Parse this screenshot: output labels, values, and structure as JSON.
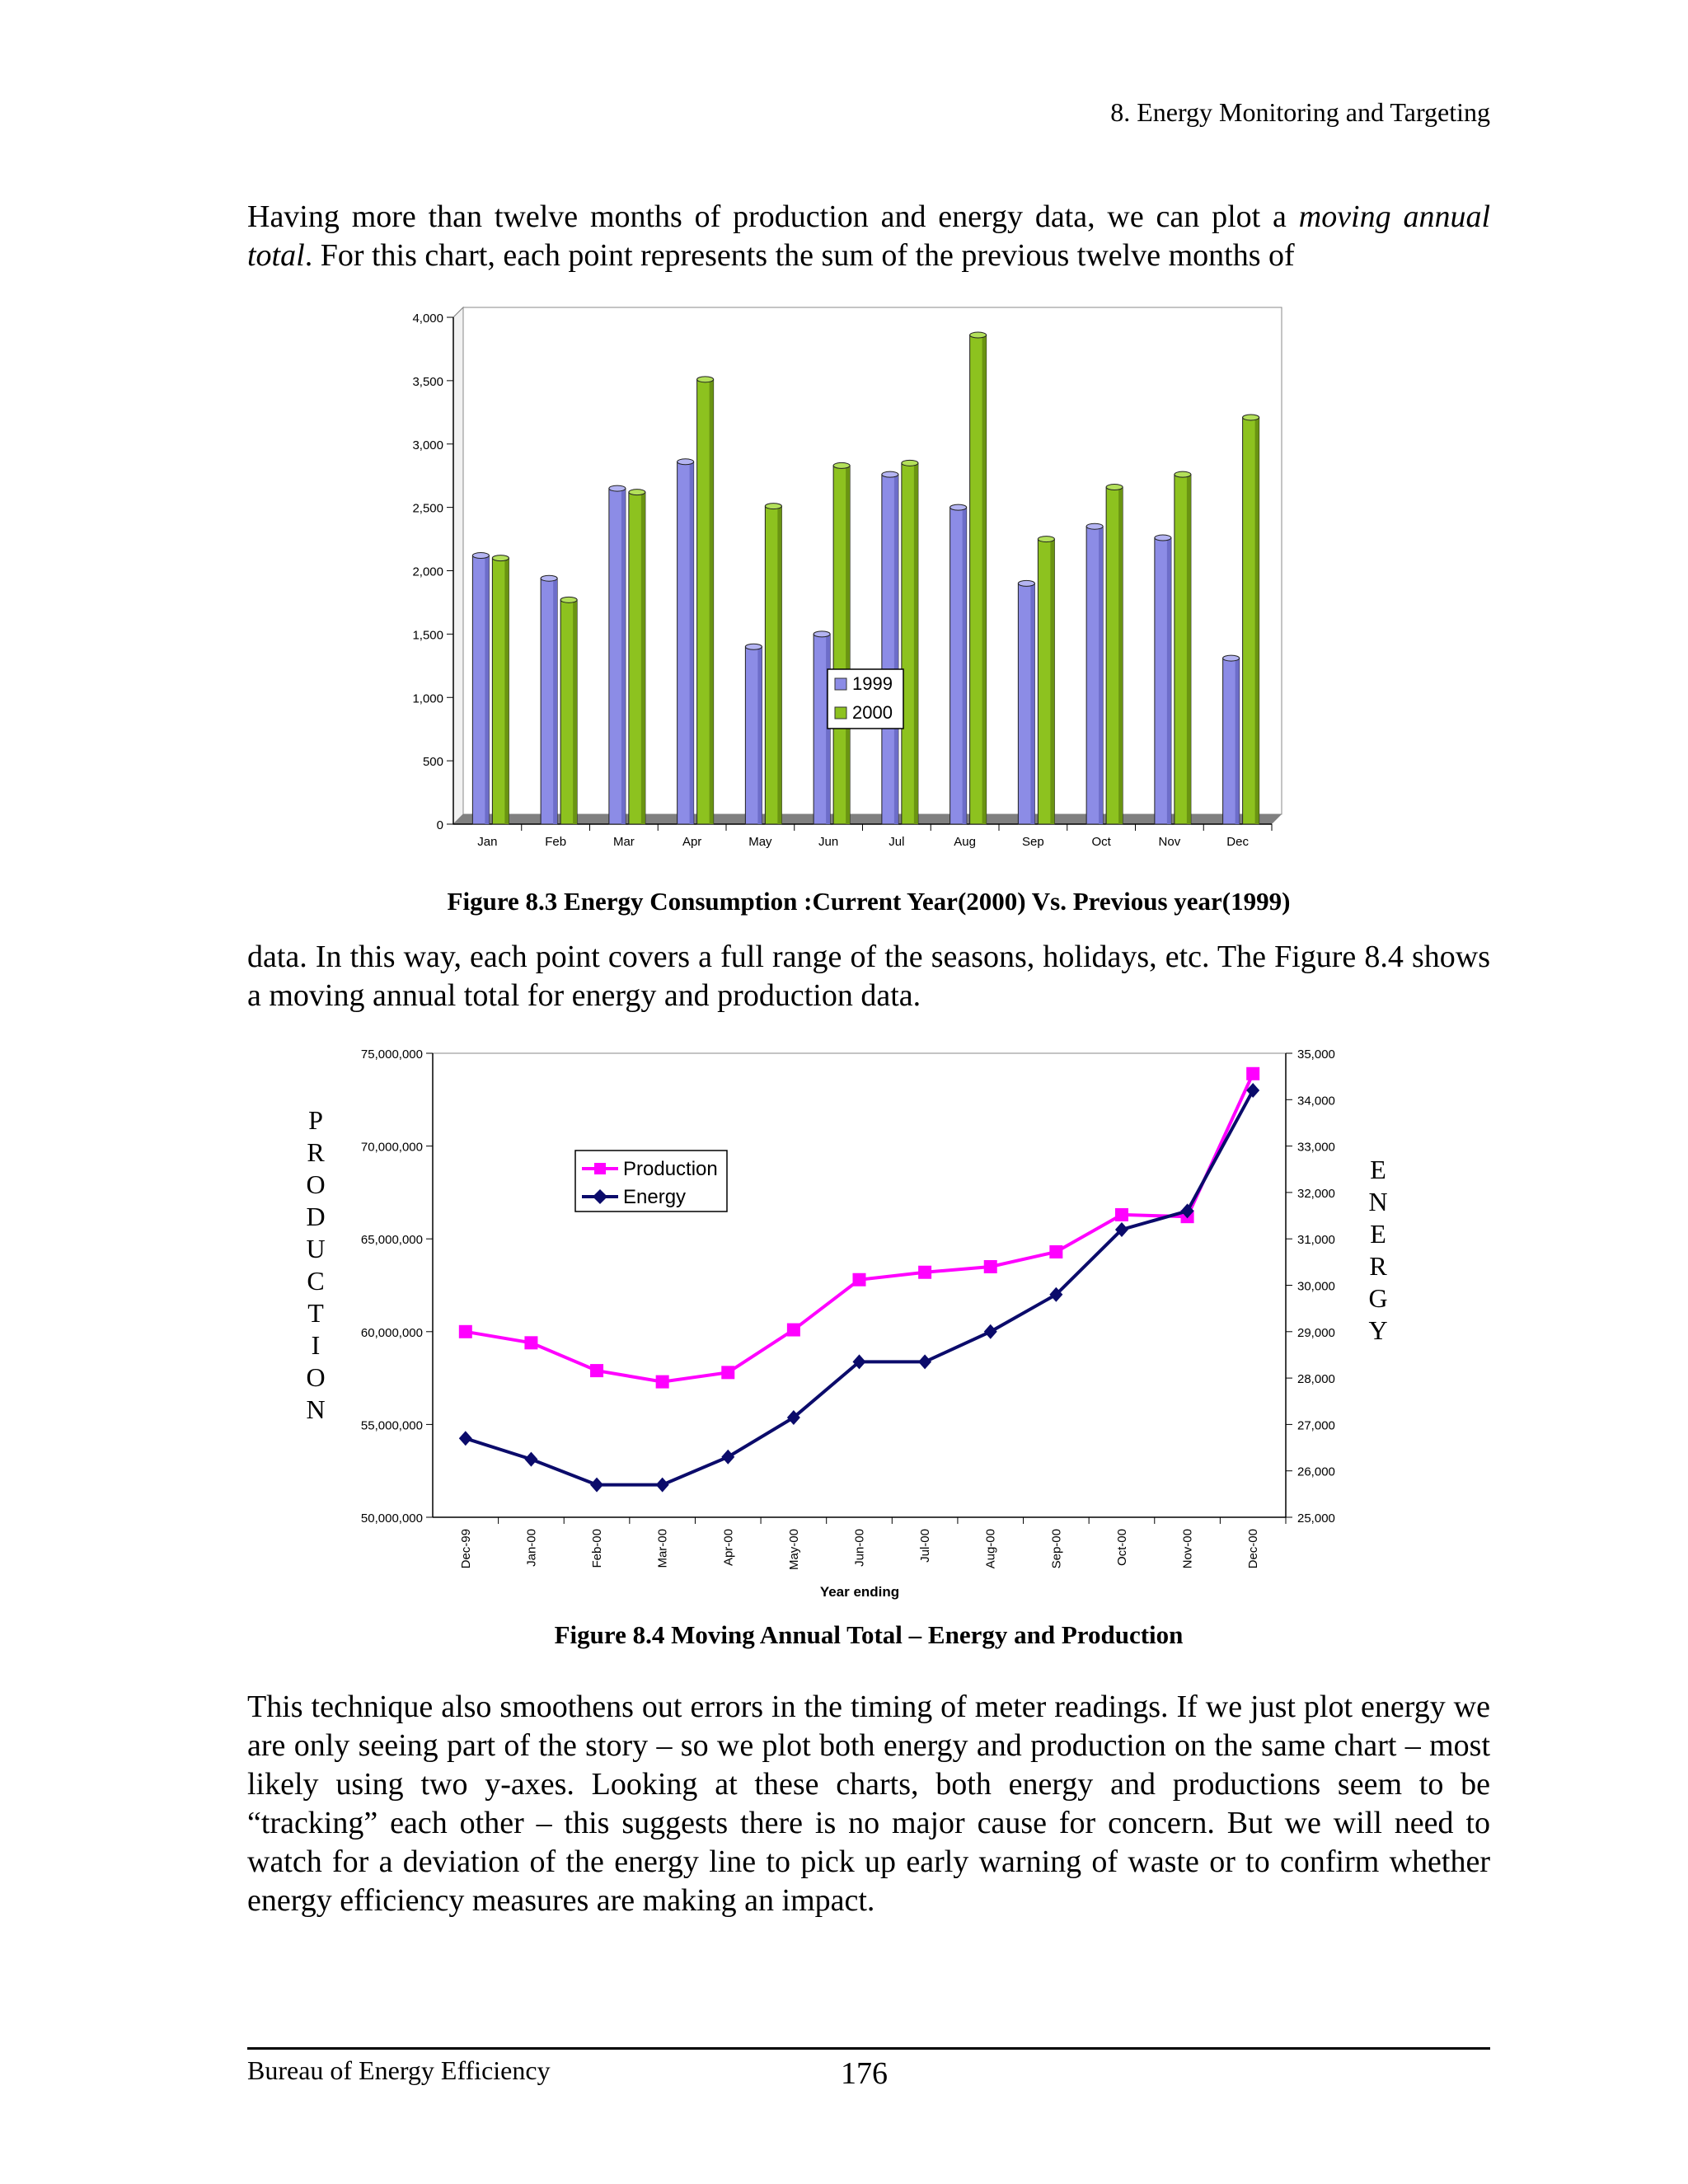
{
  "header": {
    "title": "8. Energy Monitoring and Targeting"
  },
  "para1": {
    "text_a": "Having more than twelve months of production and energy data, we can plot a ",
    "italic": "moving annual total",
    "text_b": ".   For this chart, each point represents the sum of  the previous twelve months of"
  },
  "para2": {
    "text": "data. In this way, each point covers a full range of the seasons, holidays, etc. The Figure 8.4 shows a moving annual total for energy and production data."
  },
  "para3": {
    "text": "This technique also smoothens out errors in the timing of meter readings. If we just plot energy we are only seeing part of the story – so we plot both energy and production on the same chart – most likely using two y-axes. Looking at these charts, both energy and productions seem to be “tracking” each other – this suggests there is no major cause for concern. But we will need to watch for a deviation of the energy line to pick up early warning of waste or to confirm whether energy efficiency measures are making an impact."
  },
  "captions": {
    "fig1": "Figure 8.3 Energy Consumption :Current Year(2000) Vs. Previous year(1999)",
    "fig2": "Figure 8.4 Moving Annual Total – Energy and Production"
  },
  "footer": {
    "org": "Bureau of Energy Efficiency",
    "page": "176"
  },
  "chart_data": [
    {
      "type": "bar",
      "title": "",
      "categories": [
        "Jan",
        "Feb",
        "Mar",
        "Apr",
        "May",
        "Jun",
        "Jul",
        "Aug",
        "Sep",
        "Oct",
        "Nov",
        "Dec"
      ],
      "series": [
        {
          "name": "1999",
          "color": "#8c8ce6",
          "values": [
            2120,
            1940,
            2650,
            2860,
            1400,
            1500,
            2760,
            2500,
            1900,
            2350,
            2260,
            1310
          ]
        },
        {
          "name": "2000",
          "color": "#8dc21f",
          "values": [
            2100,
            1770,
            2620,
            3510,
            2510,
            2830,
            2850,
            3860,
            2250,
            2660,
            2760,
            3210
          ]
        }
      ],
      "yticks": [
        "0",
        "500",
        "1,000",
        "1,500",
        "2,000",
        "2,500",
        "3,000",
        "3,500",
        "4,000"
      ],
      "ylim": [
        0,
        4000
      ],
      "legend_position": "center",
      "grid": true
    },
    {
      "type": "line",
      "xlabel": "Year ending",
      "left_axis_label": "PRODUCTION",
      "right_axis_label": "ENERGY",
      "categories": [
        "Dec-99",
        "Jan-00",
        "Feb-00",
        "Mar-00",
        "Apr-00",
        "May-00",
        "Jun-00",
        "Jul-00",
        "Aug-00",
        "Sep-00",
        "Oct-00",
        "Nov-00",
        "Dec-00"
      ],
      "series": [
        {
          "name": "Production",
          "axis": "left",
          "color": "#ff00ff",
          "marker": "square",
          "values": [
            60000000,
            59400000,
            57900000,
            57300000,
            57800000,
            60100000,
            62800000,
            63200000,
            63500000,
            64300000,
            66300000,
            66200000,
            73900000
          ]
        },
        {
          "name": "Energy",
          "axis": "right",
          "color": "#0b0b6b",
          "marker": "diamond",
          "values": [
            26700,
            26250,
            25700,
            25700,
            26300,
            27150,
            28350,
            28350,
            29000,
            29800,
            31200,
            31600,
            34200
          ]
        }
      ],
      "left_yticks": [
        "50,000,000",
        "55,000,000",
        "60,000,000",
        "65,000,000",
        "70,000,000",
        "75,000,000"
      ],
      "left_ylim": [
        50000000,
        75000000
      ],
      "right_yticks": [
        "25,000",
        "26,000",
        "27,000",
        "28,000",
        "29,000",
        "30,000",
        "31,000",
        "32,000",
        "33,000",
        "34,000",
        "35,000"
      ],
      "right_ylim": [
        25000,
        35000
      ],
      "legend_position": "top-left",
      "grid": true
    }
  ]
}
